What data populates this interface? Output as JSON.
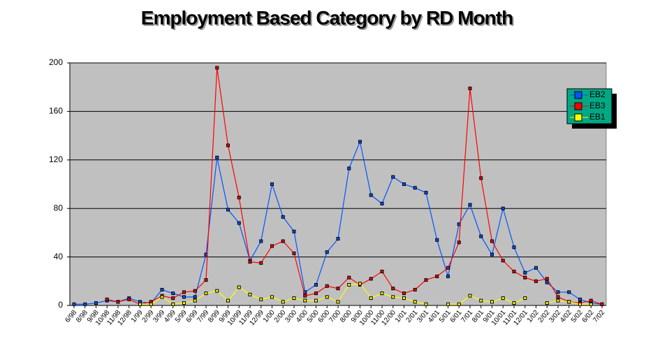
{
  "chart_data": {
    "type": "line",
    "title": "Employment Based Category by RD Month",
    "categories": [
      "6/98",
      "8/98",
      "9/98",
      "10/98",
      "11/98",
      "12/98",
      "1/99",
      "2/99",
      "3/99",
      "4/99",
      "5/99",
      "6/99",
      "7/99",
      "8/99",
      "9/99",
      "10/99",
      "11/99",
      "12/99",
      "1/00",
      "2/00",
      "3/00",
      "4/00",
      "5/00",
      "6/00",
      "7/00",
      "8/00",
      "9/00",
      "10/00",
      "11/00",
      "12/00",
      "1/01",
      "2/01",
      "3/01",
      "4/01",
      "5/01",
      "6/01",
      "7/01",
      "8/01",
      "9/01",
      "10/01",
      "11/01",
      "12/01",
      "1/02",
      "2/02",
      "3/02",
      "4/02",
      "5/02",
      "6/02",
      "7/02"
    ],
    "series": [
      {
        "name": "EB2",
        "color": "#0055ff",
        "values": [
          1,
          1,
          2,
          4,
          3,
          6,
          3,
          2,
          13,
          10,
          7,
          7,
          42,
          122,
          79,
          68,
          37,
          53,
          100,
          73,
          61,
          11,
          17,
          44,
          55,
          113,
          135,
          91,
          84,
          106,
          100,
          97,
          93,
          54,
          24,
          67,
          83,
          57,
          42,
          80,
          48,
          27,
          31,
          19,
          11,
          11,
          5,
          2,
          1
        ]
      },
      {
        "name": "EB3",
        "color": "#ff0000",
        "values": [
          null,
          null,
          null,
          5,
          3,
          5,
          1,
          3,
          8,
          6,
          11,
          12,
          21,
          196,
          132,
          89,
          36,
          35,
          49,
          53,
          43,
          8,
          10,
          16,
          14,
          23,
          17,
          22,
          28,
          14,
          10,
          13,
          21,
          24,
          31,
          52,
          179,
          105,
          53,
          37,
          28,
          23,
          20,
          22,
          7,
          3,
          2,
          4,
          1
        ]
      },
      {
        "name": "EB1",
        "color": "#ffff00",
        "values": [
          null,
          null,
          null,
          null,
          null,
          null,
          1,
          1,
          7,
          1,
          2,
          4,
          10,
          12,
          4,
          15,
          9,
          5,
          7,
          3,
          6,
          4,
          4,
          7,
          3,
          17,
          18,
          6,
          10,
          7,
          6,
          3,
          1,
          null,
          1,
          1,
          8,
          4,
          3,
          6,
          2,
          6,
          null,
          2,
          4,
          3,
          1,
          1,
          null
        ]
      }
    ],
    "ylim": [
      0,
      200
    ],
    "yticks": [
      0,
      40,
      80,
      120,
      160,
      200
    ],
    "grid": true,
    "background": "#c0c0c0",
    "legend": "top-right",
    "legend_background": "#00a884"
  }
}
